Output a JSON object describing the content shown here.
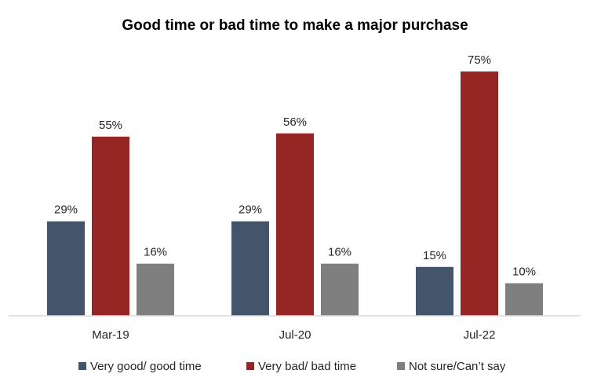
{
  "chart_data": {
    "type": "bar",
    "title": "Good time or bad time to make a major purchase",
    "categories": [
      "Mar-19",
      "Jul-20",
      "Jul-22"
    ],
    "series": [
      {
        "name": "Very good/ good time",
        "values": [
          29,
          29,
          15
        ],
        "color": "#44546A"
      },
      {
        "name": "Very bad/ bad time",
        "values": [
          55,
          56,
          75
        ],
        "color": "#952623"
      },
      {
        "name": "Not sure/Can’t say",
        "values": [
          16,
          16,
          10
        ],
        "color": "#7F7F7F"
      }
    ],
    "value_suffix": "%",
    "ylim": [
      0,
      80
    ],
    "grid": false,
    "legend_position": "bottom"
  }
}
